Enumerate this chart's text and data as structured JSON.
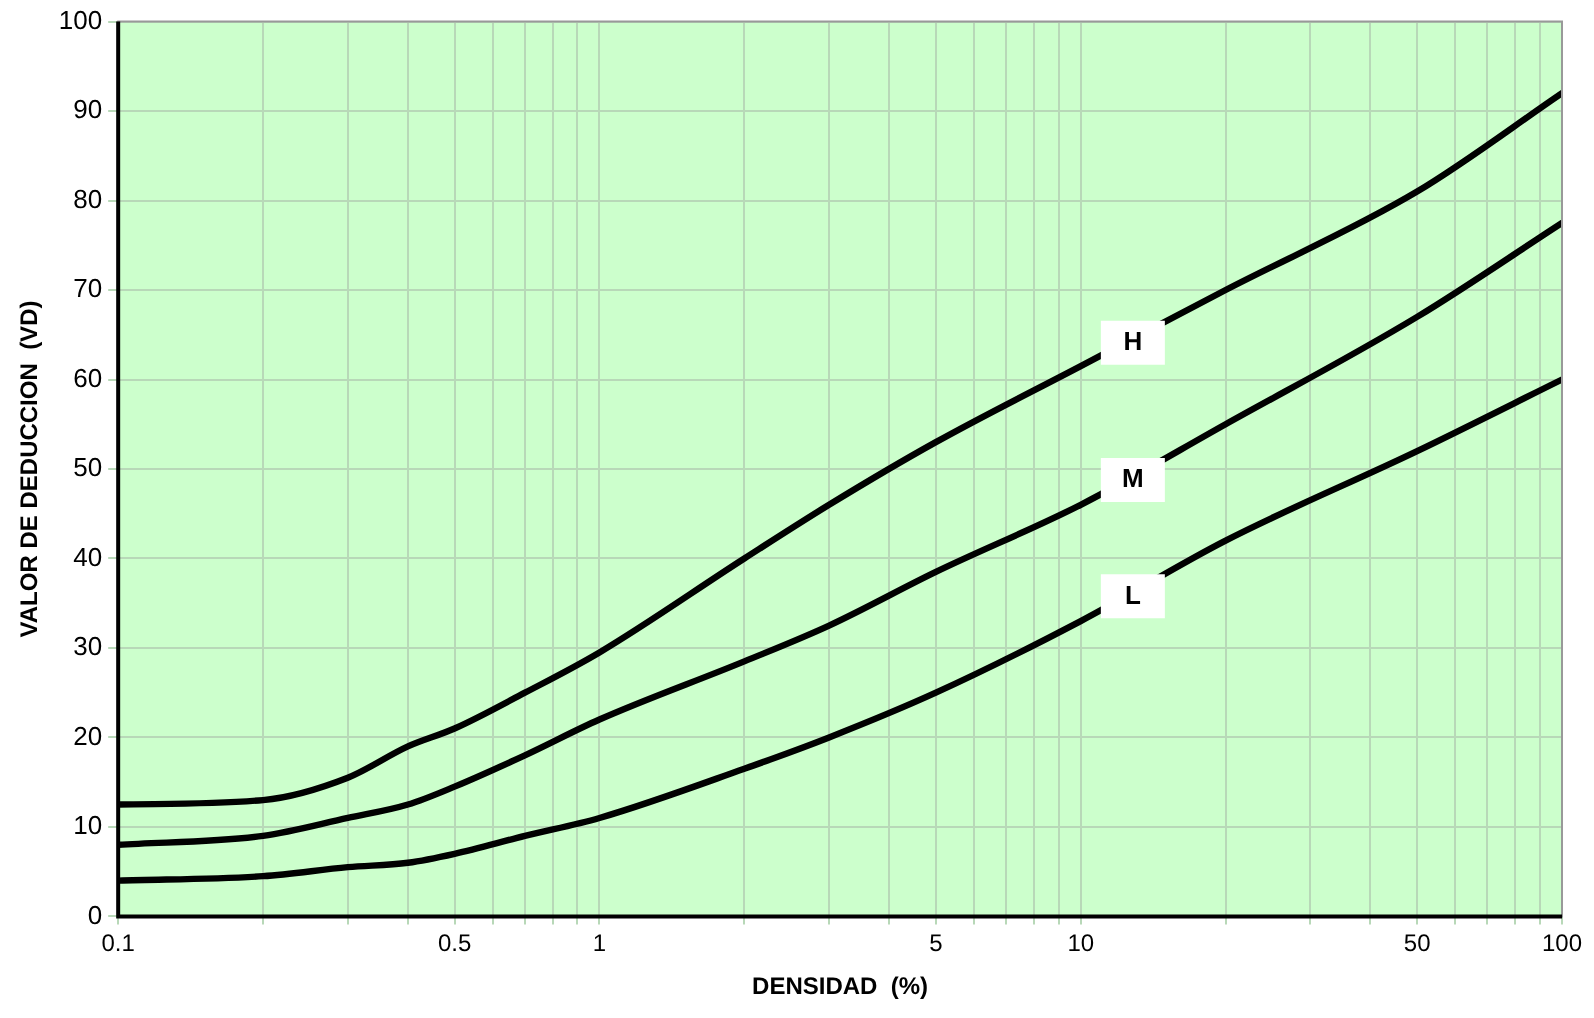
{
  "chart_data": {
    "type": "line",
    "xlabel": "DENSIDAD  (%)",
    "ylabel": "VALOR DE DEDUCCION  (VD)",
    "log": "x",
    "grid": true,
    "legend": false,
    "marker": "none",
    "line_style": "solid",
    "xlim": [
      0.1,
      100
    ],
    "ylim": [
      0,
      100
    ],
    "xticks": [
      0.1,
      {
        "value": 0.2,
        "label": null
      },
      {
        "value": 0.3,
        "label": null
      },
      {
        "value": 0.4,
        "label": null
      },
      0.5,
      {
        "value": 0.6,
        "label": null
      },
      {
        "value": 0.7,
        "label": null
      },
      {
        "value": 0.8,
        "label": null
      },
      {
        "value": 0.9,
        "label": null
      },
      1,
      {
        "value": 2,
        "label": null
      },
      {
        "value": 3,
        "label": null
      },
      {
        "value": 4,
        "label": null
      },
      5,
      {
        "value": 6,
        "label": null
      },
      {
        "value": 7,
        "label": null
      },
      {
        "value": 8,
        "label": null
      },
      {
        "value": 9,
        "label": null
      },
      10,
      {
        "value": 20,
        "label": null
      },
      {
        "value": 30,
        "label": null
      },
      {
        "value": 40,
        "label": null
      },
      50,
      {
        "value": 60,
        "label": null
      },
      {
        "value": 70,
        "label": null
      },
      {
        "value": 80,
        "label": null
      },
      {
        "value": 90,
        "label": null
      },
      100
    ],
    "yticks": [
      0,
      10,
      20,
      30,
      40,
      50,
      60,
      70,
      80,
      90,
      100
    ],
    "x": [
      0.1,
      0.2,
      0.3,
      0.4,
      0.5,
      0.7,
      1,
      2,
      3,
      5,
      10,
      20,
      50,
      100
    ],
    "series": [
      {
        "name": "H",
        "color": "#000000",
        "values": [
          12.5,
          13,
          15.5,
          19,
          21,
          25,
          29.5,
          40,
          46,
          53,
          61.5,
          70,
          81,
          92
        ]
      },
      {
        "name": "M",
        "color": "#000000",
        "values": [
          8,
          9,
          11,
          12.5,
          14.5,
          18,
          22,
          28.5,
          32.5,
          38.5,
          46,
          55,
          67,
          77.5
        ]
      },
      {
        "name": "L",
        "color": "#000000",
        "values": [
          4,
          4.5,
          5.5,
          6,
          7,
          9,
          11,
          16.5,
          20,
          25,
          33,
          42,
          52,
          60
        ]
      }
    ]
  }
}
